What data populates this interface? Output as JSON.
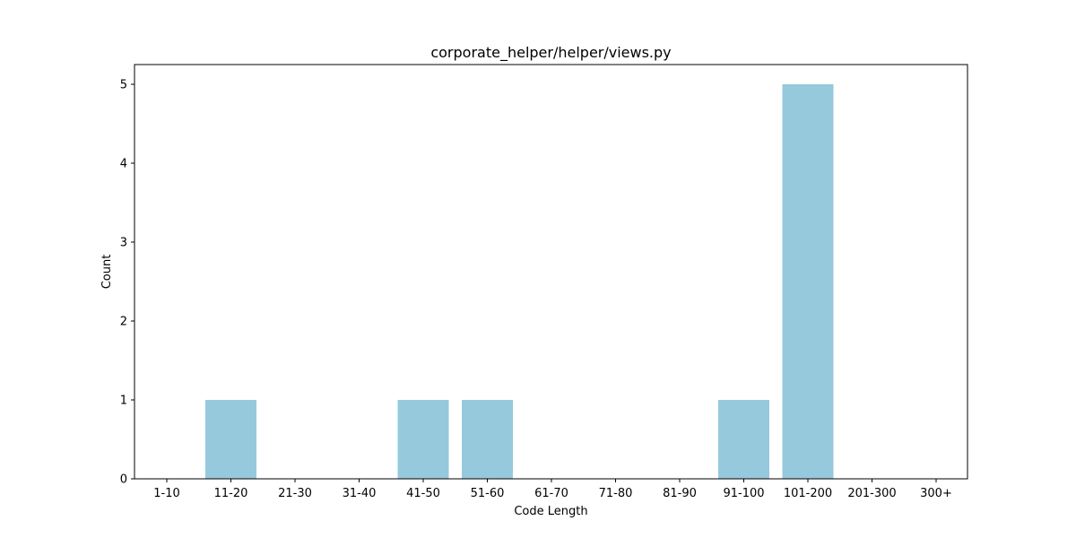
{
  "chart_data": {
    "type": "bar",
    "title": "corporate_helper/helper/views.py",
    "xlabel": "Code Length",
    "ylabel": "Count",
    "categories": [
      "1-10",
      "11-20",
      "21-30",
      "31-40",
      "41-50",
      "51-60",
      "61-70",
      "71-80",
      "81-90",
      "91-100",
      "101-200",
      "201-300",
      "300+"
    ],
    "values": [
      0,
      1,
      0,
      0,
      1,
      1,
      0,
      0,
      0,
      1,
      5,
      0,
      0
    ],
    "yticks": [
      0,
      1,
      2,
      3,
      4,
      5
    ],
    "ylim": [
      0,
      5.25
    ],
    "bar_color": "#96c9dc",
    "grid": false,
    "legend": "none"
  }
}
